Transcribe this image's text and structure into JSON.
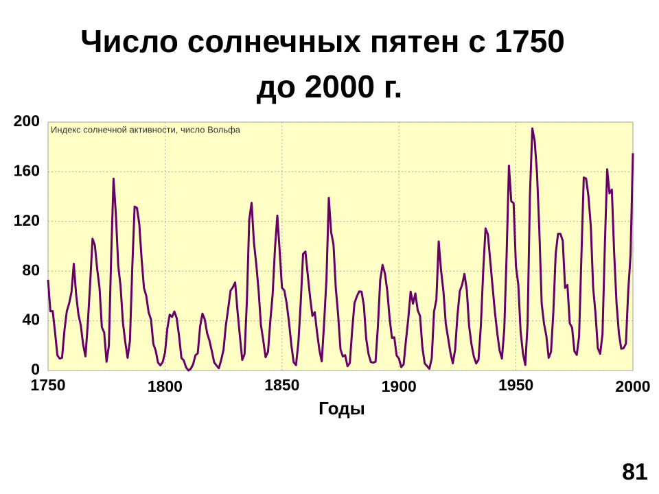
{
  "chart_data": {
    "type": "line",
    "title": "Число солнечных пятен с 1750",
    "subtitle": "до 2000 г.",
    "annotation": "Индекс солнечной активности, число Вольфа",
    "x_label": "Годы",
    "page_number": "81",
    "x": [
      1750,
      1751,
      1752,
      1753,
      1754,
      1755,
      1756,
      1757,
      1758,
      1759,
      1760,
      1761,
      1762,
      1763,
      1764,
      1765,
      1766,
      1767,
      1768,
      1769,
      1770,
      1771,
      1772,
      1773,
      1774,
      1775,
      1776,
      1777,
      1778,
      1779,
      1780,
      1781,
      1782,
      1783,
      1784,
      1785,
      1786,
      1787,
      1788,
      1789,
      1790,
      1791,
      1792,
      1793,
      1794,
      1795,
      1796,
      1797,
      1798,
      1799,
      1800,
      1801,
      1802,
      1803,
      1804,
      1805,
      1806,
      1807,
      1808,
      1809,
      1810,
      1811,
      1812,
      1813,
      1814,
      1815,
      1816,
      1817,
      1818,
      1819,
      1820,
      1821,
      1822,
      1823,
      1824,
      1825,
      1826,
      1827,
      1828,
      1829,
      1830,
      1831,
      1832,
      1833,
      1834,
      1835,
      1836,
      1837,
      1838,
      1839,
      1840,
      1841,
      1842,
      1843,
      1844,
      1845,
      1846,
      1847,
      1848,
      1849,
      1850,
      1851,
      1852,
      1853,
      1854,
      1855,
      1856,
      1857,
      1858,
      1859,
      1860,
      1861,
      1862,
      1863,
      1864,
      1865,
      1866,
      1867,
      1868,
      1869,
      1870,
      1871,
      1872,
      1873,
      1874,
      1875,
      1876,
      1877,
      1878,
      1879,
      1880,
      1881,
      1882,
      1883,
      1884,
      1885,
      1886,
      1887,
      1888,
      1889,
      1890,
      1891,
      1892,
      1893,
      1894,
      1895,
      1896,
      1897,
      1898,
      1899,
      1900,
      1901,
      1902,
      1903,
      1904,
      1905,
      1906,
      1907,
      1908,
      1909,
      1910,
      1911,
      1912,
      1913,
      1914,
      1915,
      1916,
      1917,
      1918,
      1919,
      1920,
      1921,
      1922,
      1923,
      1924,
      1925,
      1926,
      1927,
      1928,
      1929,
      1930,
      1931,
      1932,
      1933,
      1934,
      1935,
      1936,
      1937,
      1938,
      1939,
      1940,
      1941,
      1942,
      1943,
      1944,
      1945,
      1946,
      1947,
      1948,
      1949,
      1950,
      1951,
      1952,
      1953,
      1954,
      1955,
      1956,
      1957,
      1958,
      1959,
      1960,
      1961,
      1962,
      1963,
      1964,
      1965,
      1966,
      1967,
      1968,
      1969,
      1970,
      1971,
      1972,
      1973,
      1974,
      1975,
      1976,
      1977,
      1978,
      1979,
      1980,
      1981,
      1982,
      1983,
      1984,
      1985,
      1986,
      1987,
      1988,
      1989,
      1990,
      1991,
      1992,
      1993,
      1994,
      1995,
      1996,
      1997,
      1998,
      1999,
      2000
    ],
    "series": [
      {
        "name": "Индекс солнечной активности",
        "color": "#660066",
        "values": [
          73,
          47.7,
          47.8,
          30.7,
          12.2,
          9.6,
          10.2,
          32.4,
          47.6,
          54.0,
          62.9,
          85.9,
          61.2,
          45.1,
          36.4,
          20.9,
          11.4,
          37.8,
          69.8,
          106.1,
          100.8,
          81.6,
          66.5,
          34.8,
          30.6,
          7.0,
          19.8,
          92.5,
          154.4,
          125.9,
          84.8,
          68.1,
          38.5,
          22.8,
          10.2,
          24.1,
          82.9,
          132.0,
          130.9,
          118.1,
          89.9,
          66.6,
          60.0,
          46.9,
          41.0,
          21.3,
          16.0,
          6.4,
          4.1,
          6.8,
          14.5,
          34.0,
          45.0,
          43.1,
          47.5,
          42.2,
          28.1,
          10.1,
          8.1,
          2.5,
          0.0,
          1.4,
          5.0,
          12.2,
          13.9,
          35.4,
          45.8,
          41.1,
          30.1,
          23.9,
          15.6,
          6.6,
          4.0,
          1.8,
          8.5,
          16.6,
          36.3,
          49.6,
          64.2,
          67.0,
          70.9,
          47.8,
          27.5,
          8.5,
          13.2,
          56.9,
          121.5,
          135,
          103.2,
          85.7,
          64.6,
          36.7,
          24.2,
          10.7,
          15.0,
          40.1,
          61.5,
          98.5,
          124.7,
          96.3,
          66.6,
          64.5,
          54.1,
          39.0,
          20.6,
          6.7,
          4.3,
          22.7,
          54.8,
          93.8,
          95.8,
          77.2,
          59.1,
          44.0,
          47.0,
          30.5,
          16.3,
          7.3,
          37.6,
          74.0,
          139.0,
          111.2,
          101.6,
          66.2,
          44.7,
          17.0,
          11.3,
          12.4,
          3.4,
          6.0,
          32.3,
          54.3,
          59.7,
          63.7,
          63.5,
          52.2,
          25.4,
          13.1,
          6.8,
          6.3,
          7.1,
          35.6,
          73.0,
          85.1,
          78.0,
          64.0,
          41.8,
          26.2,
          26.7,
          12.1,
          9.5,
          2.7,
          5.0,
          24.4,
          42.0,
          63.5,
          53.8,
          62.0,
          48.5,
          43.9,
          18.6,
          5.7,
          3.6,
          1.4,
          9.6,
          47.4,
          57.1,
          103.9,
          80.6,
          63.6,
          37.6,
          26.1,
          14.2,
          5.8,
          16.7,
          44.3,
          63.9,
          69.0,
          77.8,
          64.9,
          35.7,
          21.2,
          11.1,
          5.7,
          8.7,
          36.1,
          79.7,
          114.4,
          109.6,
          88.8,
          67.8,
          47.5,
          30.6,
          16.3,
          9.6,
          33.2,
          92.6,
          165,
          136.3,
          134.7,
          83.9,
          69.4,
          31.5,
          13.9,
          4.4,
          38.0,
          141.7,
          195,
          184.8,
          159.0,
          112.3,
          53.9,
          37.6,
          27.9,
          10.2,
          15.1,
          47.0,
          93.8,
          110,
          110,
          104.5,
          66.6,
          68.9,
          38.0,
          34.5,
          15.5,
          12.6,
          27.5,
          92.5,
          155.4,
          154.6,
          140.4,
          115.9,
          66.6,
          45.9,
          17.9,
          13.4,
          29.4,
          100.2,
          162,
          142.6,
          145.7,
          94.3,
          54.6,
          29.9,
          17.5,
          18,
          21.5,
          64.3,
          93.3,
          175
        ]
      }
    ],
    "xlim": [
      1750,
      2000
    ],
    "xticks": [
      1750,
      1800,
      1850,
      1900,
      1950,
      2000
    ],
    "ylim": [
      0,
      200
    ],
    "yticks": [
      0,
      40,
      80,
      120,
      160,
      200
    ],
    "grid": true,
    "background": "#ffffc6"
  }
}
